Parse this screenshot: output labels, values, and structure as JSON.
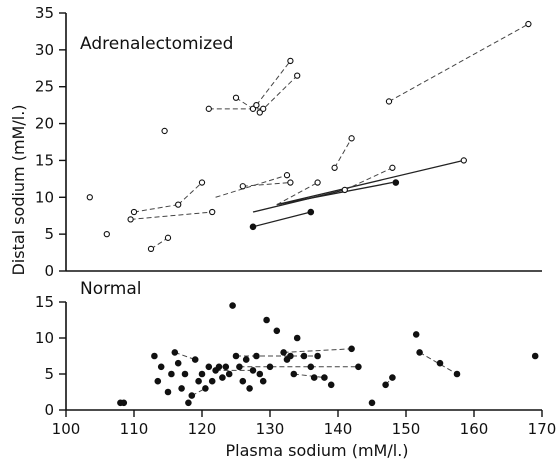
{
  "chart_data": [
    {
      "type": "scatter",
      "panel": "top",
      "title": "Adrenalectomized",
      "ylim": [
        0,
        35
      ],
      "yticks": [
        0,
        5,
        10,
        15,
        20,
        25,
        30,
        35
      ],
      "xlim": [
        100,
        170
      ],
      "points": [
        {
          "x": 103.5,
          "y": 10,
          "fill": "open"
        },
        {
          "x": 106,
          "y": 5,
          "fill": "open"
        },
        {
          "x": 109.5,
          "y": 7,
          "fill": "open"
        },
        {
          "x": 110,
          "y": 8,
          "fill": "open"
        },
        {
          "x": 112.5,
          "y": 3,
          "fill": "open"
        },
        {
          "x": 114.5,
          "y": 19,
          "fill": "open"
        },
        {
          "x": 115,
          "y": 4.5,
          "fill": "open"
        },
        {
          "x": 116.5,
          "y": 9,
          "fill": "open"
        },
        {
          "x": 120,
          "y": 12,
          "fill": "open"
        },
        {
          "x": 121,
          "y": 22,
          "fill": "open"
        },
        {
          "x": 121.5,
          "y": 8,
          "fill": "open"
        },
        {
          "x": 125,
          "y": 23.5,
          "fill": "open"
        },
        {
          "x": 126,
          "y": 11.5,
          "fill": "open"
        },
        {
          "x": 127.5,
          "y": 22,
          "fill": "open"
        },
        {
          "x": 128,
          "y": 22.5,
          "fill": "open"
        },
        {
          "x": 128.5,
          "y": 21.5,
          "fill": "open"
        },
        {
          "x": 129,
          "y": 22,
          "fill": "open"
        },
        {
          "x": 132.5,
          "y": 13,
          "fill": "open"
        },
        {
          "x": 133,
          "y": 28.5,
          "fill": "open"
        },
        {
          "x": 134,
          "y": 26.5,
          "fill": "open"
        },
        {
          "x": 133,
          "y": 12,
          "fill": "open"
        },
        {
          "x": 137,
          "y": 12,
          "fill": "open"
        },
        {
          "x": 139.5,
          "y": 14,
          "fill": "open"
        },
        {
          "x": 141,
          "y": 11,
          "fill": "open"
        },
        {
          "x": 142,
          "y": 18,
          "fill": "open"
        },
        {
          "x": 147.5,
          "y": 23,
          "fill": "open"
        },
        {
          "x": 148,
          "y": 14,
          "fill": "open"
        },
        {
          "x": 158.5,
          "y": 15,
          "fill": "open"
        },
        {
          "x": 168,
          "y": 33.5,
          "fill": "open"
        },
        {
          "x": 127.5,
          "y": 6,
          "fill": "filled"
        },
        {
          "x": 136,
          "y": 8,
          "fill": "filled"
        },
        {
          "x": 148.5,
          "y": 12,
          "fill": "filled"
        }
      ],
      "segments": [
        {
          "x1": 131,
          "y1": 9,
          "x2": 158.5,
          "y2": 15,
          "style": "solid"
        },
        {
          "x1": 131,
          "y1": 9,
          "x2": 148,
          "y2": 12,
          "style": "solid"
        },
        {
          "x1": 127.5,
          "y1": 8,
          "x2": 141,
          "y2": 11,
          "style": "solid"
        },
        {
          "x1": 127.5,
          "y1": 6,
          "x2": 136,
          "y2": 8,
          "style": "solid"
        },
        {
          "x1": 147.5,
          "y1": 23,
          "x2": 168,
          "y2": 33.5,
          "style": "dashed"
        },
        {
          "x1": 121,
          "y1": 22,
          "x2": 129,
          "y2": 22,
          "style": "dashed"
        },
        {
          "x1": 125,
          "y1": 23.5,
          "x2": 127.5,
          "y2": 22,
          "style": "dashed"
        },
        {
          "x1": 128,
          "y1": 22.5,
          "x2": 133,
          "y2": 28.5,
          "style": "dashed"
        },
        {
          "x1": 128.5,
          "y1": 21.5,
          "x2": 134,
          "y2": 26.5,
          "style": "dashed"
        },
        {
          "x1": 126,
          "y1": 11.5,
          "x2": 133,
          "y2": 12,
          "style": "dashed"
        },
        {
          "x1": 122,
          "y1": 10,
          "x2": 132.5,
          "y2": 13,
          "style": "dashed"
        },
        {
          "x1": 139.5,
          "y1": 14,
          "x2": 142,
          "y2": 18,
          "style": "dashed"
        },
        {
          "x1": 131,
          "y1": 9,
          "x2": 137,
          "y2": 12,
          "style": "dashed"
        },
        {
          "x1": 141,
          "y1": 11,
          "x2": 148,
          "y2": 14,
          "style": "dashed"
        },
        {
          "x1": 110,
          "y1": 8,
          "x2": 116.5,
          "y2": 9,
          "style": "dashed"
        },
        {
          "x1": 109.5,
          "y1": 7,
          "x2": 121.5,
          "y2": 8,
          "style": "dashed"
        },
        {
          "x1": 112.5,
          "y1": 3,
          "x2": 115,
          "y2": 4.5,
          "style": "dashed"
        },
        {
          "x1": 116.5,
          "y1": 9,
          "x2": 120,
          "y2": 12,
          "style": "dashed"
        }
      ]
    },
    {
      "type": "scatter",
      "panel": "bottom",
      "title": "Normal",
      "ylim": [
        0,
        15
      ],
      "yticks": [
        0,
        5,
        10,
        15
      ],
      "xlim": [
        100,
        170
      ],
      "xticks": [
        100,
        110,
        120,
        130,
        140,
        150,
        160,
        170
      ],
      "xlabel": "Plasma sodium (mM/l.)",
      "ylabel": "Distal sodium (mM/l.)",
      "points": [
        {
          "x": 108,
          "y": 1
        },
        {
          "x": 108.5,
          "y": 1
        },
        {
          "x": 113,
          "y": 7.5
        },
        {
          "x": 113.5,
          "y": 4
        },
        {
          "x": 114,
          "y": 6
        },
        {
          "x": 115,
          "y": 2.5
        },
        {
          "x": 115.5,
          "y": 5
        },
        {
          "x": 116,
          "y": 8
        },
        {
          "x": 116.5,
          "y": 6.5
        },
        {
          "x": 117,
          "y": 3
        },
        {
          "x": 117.5,
          "y": 5
        },
        {
          "x": 118,
          "y": 1
        },
        {
          "x": 118.5,
          "y": 2
        },
        {
          "x": 119,
          "y": 7
        },
        {
          "x": 119.5,
          "y": 4
        },
        {
          "x": 120,
          "y": 5
        },
        {
          "x": 120.5,
          "y": 3
        },
        {
          "x": 121,
          "y": 6
        },
        {
          "x": 121.5,
          "y": 4
        },
        {
          "x": 122,
          "y": 5.5
        },
        {
          "x": 122.5,
          "y": 6
        },
        {
          "x": 123,
          "y": 4.5
        },
        {
          "x": 123.5,
          "y": 6
        },
        {
          "x": 124,
          "y": 5
        },
        {
          "x": 124.5,
          "y": 14.5
        },
        {
          "x": 125,
          "y": 7.5
        },
        {
          "x": 125.5,
          "y": 6
        },
        {
          "x": 126,
          "y": 4
        },
        {
          "x": 126.5,
          "y": 7
        },
        {
          "x": 127,
          "y": 3
        },
        {
          "x": 127.5,
          "y": 5.5
        },
        {
          "x": 128,
          "y": 7.5
        },
        {
          "x": 128.5,
          "y": 5
        },
        {
          "x": 129,
          "y": 4
        },
        {
          "x": 129.5,
          "y": 12.5
        },
        {
          "x": 130,
          "y": 6
        },
        {
          "x": 131,
          "y": 11
        },
        {
          "x": 132,
          "y": 8
        },
        {
          "x": 132.5,
          "y": 7
        },
        {
          "x": 133,
          "y": 7.5
        },
        {
          "x": 133.5,
          "y": 5
        },
        {
          "x": 134,
          "y": 10
        },
        {
          "x": 135,
          "y": 7.5
        },
        {
          "x": 136,
          "y": 6
        },
        {
          "x": 136.5,
          "y": 4.5
        },
        {
          "x": 137,
          "y": 7.5
        },
        {
          "x": 138,
          "y": 4.5
        },
        {
          "x": 139,
          "y": 3.5
        },
        {
          "x": 142,
          "y": 8.5
        },
        {
          "x": 143,
          "y": 6
        },
        {
          "x": 145,
          "y": 1
        },
        {
          "x": 147,
          "y": 3.5
        },
        {
          "x": 148,
          "y": 4.5
        },
        {
          "x": 151.5,
          "y": 10.5
        },
        {
          "x": 152,
          "y": 8
        },
        {
          "x": 155,
          "y": 6.5
        },
        {
          "x": 157.5,
          "y": 5
        },
        {
          "x": 169,
          "y": 7.5
        }
      ],
      "segments": [
        {
          "x1": 125,
          "y1": 7.5,
          "x2": 137,
          "y2": 7.5
        },
        {
          "x1": 125.5,
          "y1": 6,
          "x2": 136,
          "y2": 6
        },
        {
          "x1": 132,
          "y1": 8,
          "x2": 142,
          "y2": 8.5
        },
        {
          "x1": 133.5,
          "y1": 5,
          "x2": 138,
          "y2": 4.5
        },
        {
          "x1": 136,
          "y1": 6,
          "x2": 143,
          "y2": 6
        },
        {
          "x1": 116,
          "y1": 8,
          "x2": 119,
          "y2": 7
        },
        {
          "x1": 118.5,
          "y1": 2,
          "x2": 120.5,
          "y2": 3
        },
        {
          "x1": 122,
          "y1": 5.5,
          "x2": 127.5,
          "y2": 5.5
        },
        {
          "x1": 152,
          "y1": 8,
          "x2": 157.5,
          "y2": 5
        },
        {
          "x1": 147,
          "y1": 3.5,
          "x2": 148,
          "y2": 4.5
        }
      ]
    }
  ]
}
